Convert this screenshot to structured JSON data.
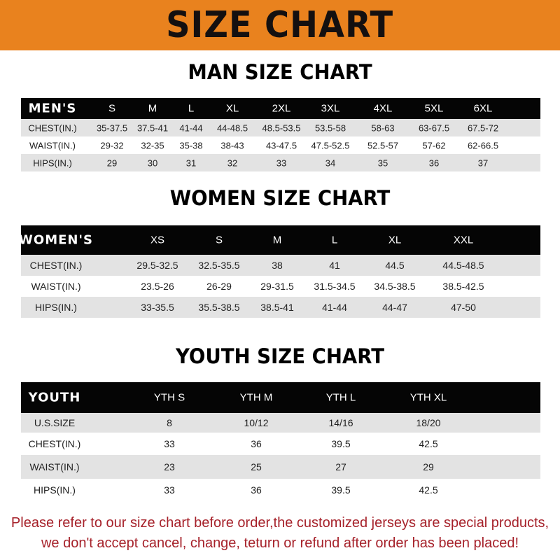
{
  "banner_title": "SIZE CHART",
  "colors": {
    "banner": "#e9821e",
    "header_row": "#050505",
    "shaded_row": "#e3e3e3",
    "note_text": "#a6212a"
  },
  "men": {
    "title": "MAN SIZE CHART",
    "header": [
      "MEN'S",
      "S",
      "M",
      "L",
      "XL",
      "2XL",
      "3XL",
      "4XL",
      "5XL",
      "6XL"
    ],
    "rows": [
      [
        "CHEST(IN.)",
        "35-37.5",
        "37.5-41",
        "41-44",
        "44-48.5",
        "48.5-53.5",
        "53.5-58",
        "58-63",
        "63-67.5",
        "67.5-72"
      ],
      [
        "WAIST(IN.)",
        "29-32",
        "32-35",
        "35-38",
        "38-43",
        "43-47.5",
        "47.5-52.5",
        "52.5-57",
        "57-62",
        "62-66.5"
      ],
      [
        "HIPS(IN.)",
        "29",
        "30",
        "31",
        "32",
        "33",
        "34",
        "35",
        "36",
        "37"
      ]
    ]
  },
  "women": {
    "title": "WOMEN SIZE CHART",
    "header": [
      "WOMEN'S",
      "XS",
      "S",
      "M",
      "L",
      "XL",
      "XXL"
    ],
    "rows": [
      [
        "CHEST(IN.)",
        "29.5-32.5",
        "32.5-35.5",
        "38",
        "41",
        "44.5",
        "44.5-48.5"
      ],
      [
        "WAIST(IN.)",
        "23.5-26",
        "26-29",
        "29-31.5",
        "31.5-34.5",
        "34.5-38.5",
        "38.5-42.5"
      ],
      [
        "HIPS(IN.)",
        "33-35.5",
        "35.5-38.5",
        "38.5-41",
        "41-44",
        "44-47",
        "47-50"
      ]
    ]
  },
  "youth": {
    "title": "YOUTH SIZE CHART",
    "header": [
      "YOUTH",
      "YTH S",
      "YTH M",
      "YTH L",
      "YTH XL"
    ],
    "rows": [
      [
        "U.S.SIZE",
        "8",
        "10/12",
        "14/16",
        "18/20"
      ],
      [
        "CHEST(IN.)",
        "33",
        "36",
        "39.5",
        "42.5"
      ],
      [
        "WAIST(IN.)",
        "23",
        "25",
        "27",
        "29"
      ],
      [
        "HIPS(IN.)",
        "33",
        "36",
        "39.5",
        "42.5"
      ]
    ]
  },
  "note": {
    "line1": "Please refer to our size chart before order,the customized jerseys are special products,",
    "line2": "we don't accept cancel, change, teturn or refund after order has been placed!"
  }
}
